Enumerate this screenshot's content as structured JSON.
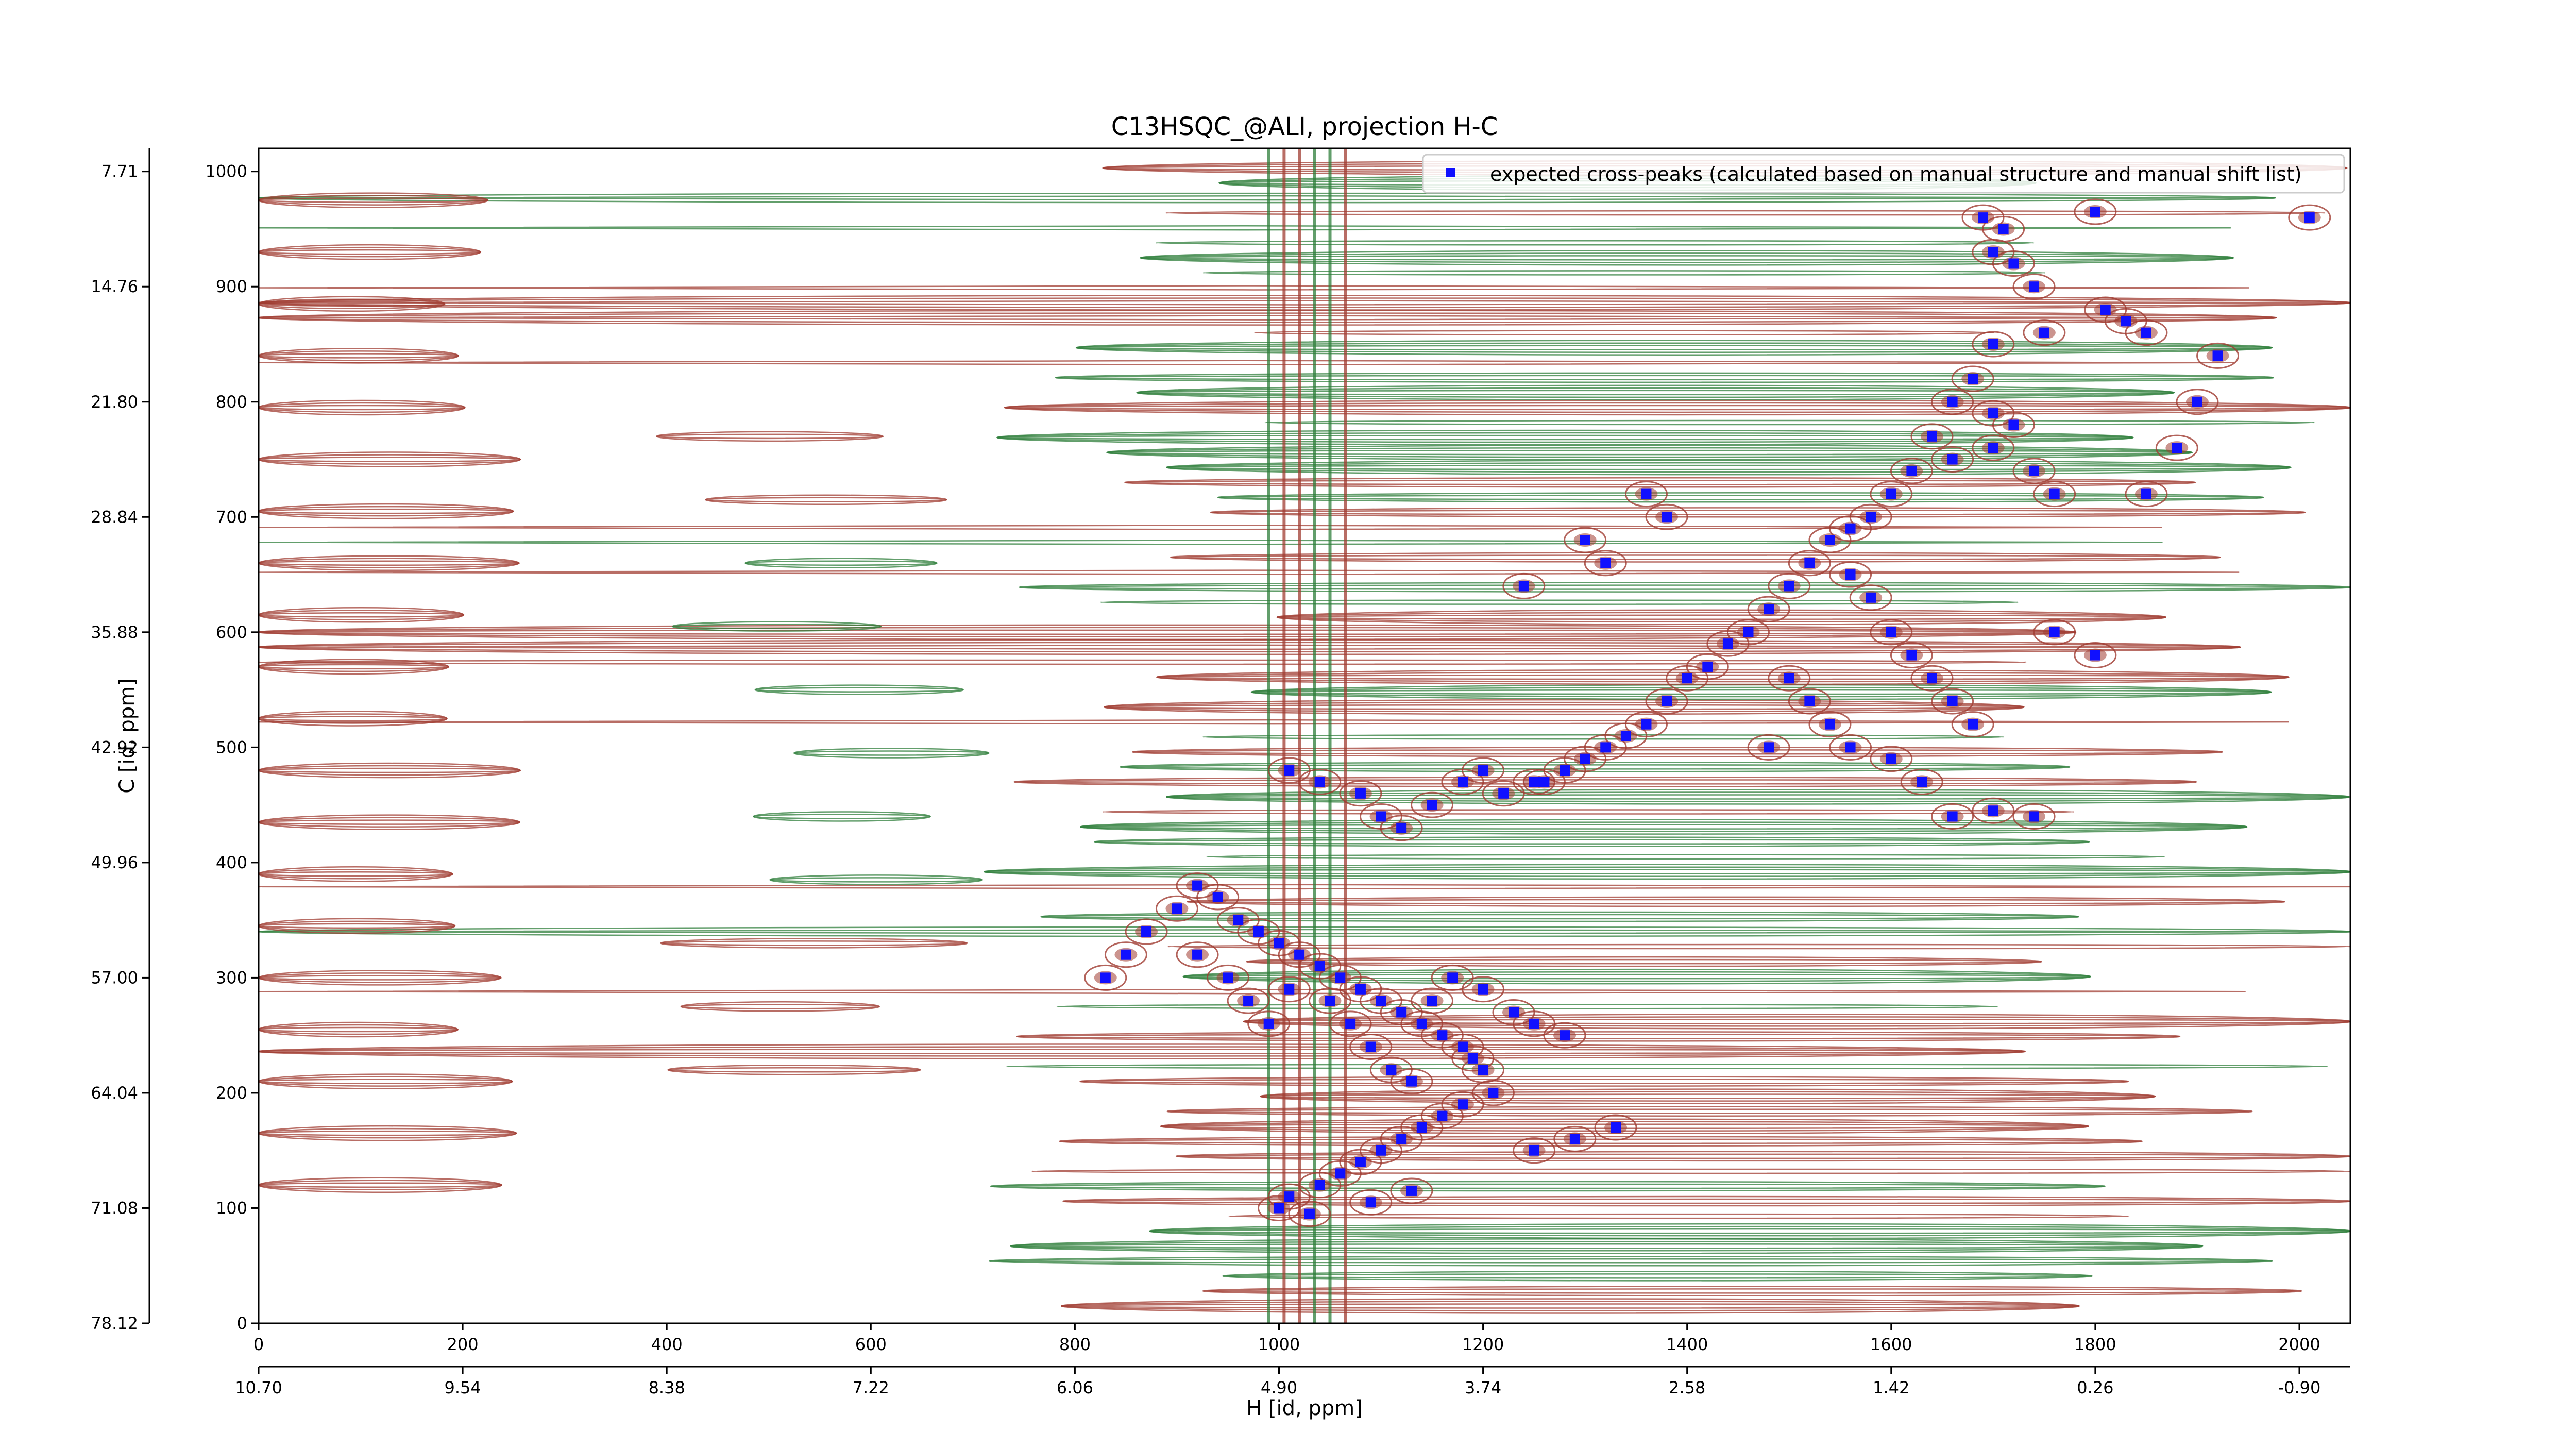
{
  "chart_data": {
    "type": "scatter",
    "title": "C13HSQC_@ALI, projection H-C",
    "xlabel": "H [id, ppm]",
    "ylabel": "C [id, ppm]",
    "x_range": [
      0,
      2050
    ],
    "y_range": [
      0,
      1020
    ],
    "bottom_index_ticks": [
      "0",
      "200",
      "400",
      "600",
      "800",
      "1000",
      "1200",
      "1400",
      "1600",
      "1800",
      "2000"
    ],
    "bottom_ppm_ticks": [
      "10.70",
      "9.54",
      "8.38",
      "7.22",
      "6.06",
      "4.90",
      "3.74",
      "2.58",
      "1.42",
      "0.26",
      "-0.90"
    ],
    "left_index_ticks": [
      "0",
      "100",
      "200",
      "300",
      "400",
      "500",
      "600",
      "700",
      "800",
      "900",
      "1000"
    ],
    "left_ppm_ticks": [
      "78.12",
      "71.08",
      "64.04",
      "57.00",
      "49.96",
      "42.92",
      "35.88",
      "28.84",
      "21.80",
      "14.76",
      "7.71"
    ],
    "legend": {
      "position": "top-right",
      "label": "expected cross-peaks (calculated based on manual structure and manual shift list)"
    },
    "colors": {
      "positive_contour": "#a03c32",
      "negative_contour": "#2e7d3a",
      "cross_peak": "#1010ff"
    },
    "series": [
      {
        "name": "expected cross-peaks (calculated based on manual structure and manual shift list)",
        "points": [
          [
            1690,
            960
          ],
          [
            1710,
            950
          ],
          [
            1700,
            930
          ],
          [
            1720,
            920
          ],
          [
            1740,
            900
          ],
          [
            1800,
            965
          ],
          [
            1830,
            870
          ],
          [
            1850,
            860
          ],
          [
            1810,
            880
          ],
          [
            1750,
            860
          ],
          [
            1700,
            850
          ],
          [
            1680,
            820
          ],
          [
            1660,
            800
          ],
          [
            1700,
            790
          ],
          [
            1720,
            780
          ],
          [
            1640,
            770
          ],
          [
            1660,
            750
          ],
          [
            1700,
            760
          ],
          [
            1740,
            740
          ],
          [
            1760,
            720
          ],
          [
            1620,
            740
          ],
          [
            1600,
            720
          ],
          [
            1580,
            700
          ],
          [
            1560,
            690
          ],
          [
            1540,
            680
          ],
          [
            1520,
            660
          ],
          [
            1500,
            640
          ],
          [
            1480,
            620
          ],
          [
            1460,
            600
          ],
          [
            1440,
            590
          ],
          [
            1420,
            570
          ],
          [
            1400,
            560
          ],
          [
            1380,
            540
          ],
          [
            1360,
            520
          ],
          [
            1340,
            510
          ],
          [
            1320,
            500
          ],
          [
            1300,
            490
          ],
          [
            1280,
            480
          ],
          [
            1260,
            470
          ],
          [
            1560,
            650
          ],
          [
            1580,
            630
          ],
          [
            1600,
            600
          ],
          [
            1620,
            580
          ],
          [
            1640,
            560
          ],
          [
            1660,
            540
          ],
          [
            1680,
            520
          ],
          [
            1500,
            560
          ],
          [
            1520,
            540
          ],
          [
            1540,
            520
          ],
          [
            1480,
            500
          ],
          [
            1560,
            500
          ],
          [
            1600,
            490
          ],
          [
            1630,
            470
          ],
          [
            1660,
            440
          ],
          [
            1700,
            445
          ],
          [
            1740,
            440
          ],
          [
            1380,
            700
          ],
          [
            1360,
            720
          ],
          [
            1300,
            680
          ],
          [
            1320,
            660
          ],
          [
            1240,
            640
          ],
          [
            1760,
            600
          ],
          [
            1800,
            580
          ],
          [
            1850,
            720
          ],
          [
            1880,
            760
          ],
          [
            1900,
            800
          ],
          [
            1920,
            840
          ],
          [
            2010,
            960
          ],
          [
            1010,
            480
          ],
          [
            1040,
            470
          ],
          [
            1080,
            460
          ],
          [
            1100,
            440
          ],
          [
            1120,
            430
          ],
          [
            1150,
            450
          ],
          [
            1180,
            470
          ],
          [
            1200,
            480
          ],
          [
            1220,
            460
          ],
          [
            1250,
            470
          ],
          [
            830,
            300
          ],
          [
            850,
            320
          ],
          [
            870,
            340
          ],
          [
            900,
            360
          ],
          [
            920,
            380
          ],
          [
            940,
            370
          ],
          [
            960,
            350
          ],
          [
            980,
            340
          ],
          [
            1000,
            330
          ],
          [
            1020,
            320
          ],
          [
            1040,
            310
          ],
          [
            1060,
            300
          ],
          [
            1080,
            290
          ],
          [
            1100,
            280
          ],
          [
            1120,
            270
          ],
          [
            1140,
            260
          ],
          [
            1160,
            250
          ],
          [
            1180,
            240
          ],
          [
            1190,
            230
          ],
          [
            1200,
            220
          ],
          [
            1210,
            200
          ],
          [
            1180,
            190
          ],
          [
            1160,
            180
          ],
          [
            1140,
            170
          ],
          [
            1120,
            160
          ],
          [
            1100,
            150
          ],
          [
            1080,
            140
          ],
          [
            1060,
            130
          ],
          [
            1040,
            120
          ],
          [
            1010,
            110
          ],
          [
            1000,
            100
          ],
          [
            1030,
            95
          ],
          [
            1090,
            105
          ],
          [
            1130,
            115
          ],
          [
            1250,
            150
          ],
          [
            1290,
            160
          ],
          [
            1330,
            170
          ],
          [
            1150,
            280
          ],
          [
            1170,
            300
          ],
          [
            1200,
            290
          ],
          [
            1230,
            270
          ],
          [
            1250,
            260
          ],
          [
            1280,
            250
          ],
          [
            920,
            320
          ],
          [
            950,
            300
          ],
          [
            970,
            280
          ],
          [
            990,
            260
          ],
          [
            1010,
            290
          ],
          [
            1050,
            280
          ],
          [
            1070,
            260
          ],
          [
            1090,
            240
          ],
          [
            1110,
            220
          ],
          [
            1130,
            210
          ]
        ]
      }
    ]
  }
}
